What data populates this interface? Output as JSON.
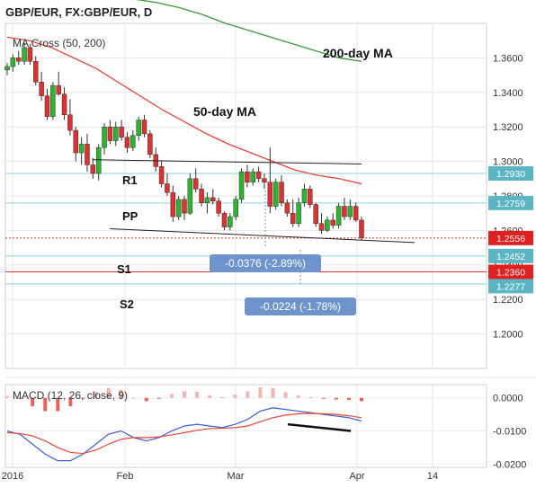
{
  "header": {
    "title": "GBP/EUR, FX:GBP/EUR, D"
  },
  "main_pane": {
    "indicator_label": "MA Cross (50, 200)",
    "ma200_label": "200-day MA",
    "ma50_label": "50-day MA",
    "levels": {
      "r1": "R1",
      "pp": "PP",
      "s1": "S1",
      "s2": "S2"
    },
    "measure_1": "-0.0376 (-2.89%)",
    "measure_2": "-0.0224 (-1.78%)"
  },
  "macd_pane": {
    "label": "MACD (12, 26, close, 9)"
  },
  "colors": {
    "bull": "#2db52d",
    "bear": "#e03030",
    "ma50": "#e8453c",
    "ma200": "#3a9a3a",
    "macd_line": "#3b5bdb",
    "signal_line": "#e8453c",
    "level_line": "#8fd3dc",
    "price_tag": "#e02020",
    "level_tag": "#5bb5c4",
    "measure_box": "#6f94cc"
  },
  "chart_data": [
    {
      "type": "candlestick",
      "title": "GBP/EUR, FX:GBP/EUR, D",
      "x_ticks": [
        "2016",
        "Feb",
        "Mar",
        "Apr",
        "14"
      ],
      "y_ticks": [
        "1.2000",
        "1.2200",
        "1.2400",
        "1.2600",
        "1.2800",
        "1.3000",
        "1.3200",
        "1.3400",
        "1.3600"
      ],
      "ylim": [
        1.18,
        1.38
      ],
      "grid": true,
      "price_tags": {
        "last": "1.2556",
        "r1": "1.2930",
        "pp": "1.2759",
        "s1": "1.2452",
        "s2": "1.2360",
        "low": "1.2277"
      },
      "candles": [
        [
          1.353,
          1.357,
          1.35,
          1.355
        ],
        [
          1.355,
          1.362,
          1.352,
          1.36
        ],
        [
          1.36,
          1.364,
          1.356,
          1.358
        ],
        [
          1.358,
          1.369,
          1.356,
          1.366
        ],
        [
          1.366,
          1.368,
          1.356,
          1.358
        ],
        [
          1.358,
          1.361,
          1.344,
          1.346
        ],
        [
          1.346,
          1.352,
          1.335,
          1.338
        ],
        [
          1.338,
          1.342,
          1.324,
          1.326
        ],
        [
          1.326,
          1.346,
          1.324,
          1.344
        ],
        [
          1.344,
          1.352,
          1.338,
          1.339
        ],
        [
          1.339,
          1.343,
          1.324,
          1.327
        ],
        [
          1.327,
          1.336,
          1.315,
          1.318
        ],
        [
          1.318,
          1.32,
          1.3,
          1.305
        ],
        [
          1.305,
          1.314,
          1.298,
          1.31
        ],
        [
          1.31,
          1.316,
          1.294,
          1.298
        ],
        [
          1.298,
          1.302,
          1.29,
          1.293
        ],
        [
          1.293,
          1.31,
          1.289,
          1.308
        ],
        [
          1.308,
          1.322,
          1.304,
          1.32
        ],
        [
          1.32,
          1.324,
          1.31,
          1.312
        ],
        [
          1.312,
          1.323,
          1.309,
          1.32
        ],
        [
          1.32,
          1.324,
          1.312,
          1.314
        ],
        [
          1.314,
          1.317,
          1.305,
          1.308
        ],
        [
          1.308,
          1.318,
          1.306,
          1.315
        ],
        [
          1.315,
          1.326,
          1.312,
          1.324
        ],
        [
          1.324,
          1.327,
          1.314,
          1.316
        ],
        [
          1.316,
          1.318,
          1.302,
          1.304
        ],
        [
          1.304,
          1.308,
          1.294,
          1.297
        ],
        [
          1.297,
          1.3,
          1.285,
          1.287
        ],
        [
          1.287,
          1.293,
          1.28,
          1.282
        ],
        [
          1.282,
          1.286,
          1.265,
          1.268
        ],
        [
          1.268,
          1.28,
          1.266,
          1.278
        ],
        [
          1.278,
          1.28,
          1.266,
          1.27
        ],
        [
          1.27,
          1.293,
          1.269,
          1.29
        ],
        [
          1.29,
          1.296,
          1.282,
          1.284
        ],
        [
          1.284,
          1.287,
          1.274,
          1.276
        ],
        [
          1.276,
          1.282,
          1.27,
          1.279
        ],
        [
          1.279,
          1.284,
          1.275,
          1.277
        ],
        [
          1.277,
          1.279,
          1.268,
          1.27
        ],
        [
          1.27,
          1.271,
          1.26,
          1.262
        ],
        [
          1.262,
          1.27,
          1.26,
          1.268
        ],
        [
          1.268,
          1.28,
          1.266,
          1.278
        ],
        [
          1.278,
          1.296,
          1.276,
          1.294
        ],
        [
          1.294,
          1.298,
          1.285,
          1.288
        ],
        [
          1.288,
          1.296,
          1.286,
          1.294
        ],
        [
          1.294,
          1.297,
          1.288,
          1.29
        ],
        [
          1.29,
          1.293,
          1.284,
          1.288
        ],
        [
          1.288,
          1.308,
          1.27,
          1.274
        ],
        [
          1.274,
          1.29,
          1.272,
          1.288
        ],
        [
          1.288,
          1.292,
          1.274,
          1.276
        ],
        [
          1.276,
          1.278,
          1.268,
          1.27
        ],
        [
          1.27,
          1.278,
          1.262,
          1.264
        ],
        [
          1.264,
          1.279,
          1.262,
          1.276
        ],
        [
          1.276,
          1.287,
          1.274,
          1.284
        ],
        [
          1.284,
          1.286,
          1.273,
          1.275
        ],
        [
          1.275,
          1.276,
          1.262,
          1.264
        ],
        [
          1.264,
          1.27,
          1.258,
          1.26
        ],
        [
          1.26,
          1.268,
          1.259,
          1.266
        ],
        [
          1.266,
          1.27,
          1.261,
          1.263
        ],
        [
          1.263,
          1.276,
          1.261,
          1.274
        ],
        [
          1.274,
          1.279,
          1.266,
          1.268
        ],
        [
          1.268,
          1.278,
          1.266,
          1.274
        ],
        [
          1.274,
          1.276,
          1.265,
          1.266
        ],
        [
          1.266,
          1.268,
          1.254,
          1.2556
        ]
      ],
      "ma50": [
        1.372,
        1.37,
        1.366,
        1.36,
        1.354,
        1.346,
        1.338,
        1.33,
        1.323,
        1.316,
        1.31,
        1.305,
        1.3,
        1.295,
        1.292,
        1.29,
        1.287
      ],
      "ma200": [
        1.394,
        1.392,
        1.389,
        1.385,
        1.38,
        1.376,
        1.372,
        1.368,
        1.364,
        1.36,
        1.358
      ],
      "trendlines": [
        {
          "x": [
            0.24,
            1.0
          ],
          "y": [
            1.301,
            1.2985
          ]
        },
        {
          "x": [
            0.29,
            1.15
          ],
          "y": [
            1.261,
            1.253
          ]
        }
      ]
    },
    {
      "type": "line",
      "title": "MACD (12, 26, close, 9)",
      "y_ticks": [
        "0.0000",
        "-0.0100",
        "-0.0200"
      ],
      "ylim": [
        -0.021,
        0.004
      ],
      "series": [
        {
          "values": [
            -0.01,
            -0.011,
            -0.014,
            -0.017,
            -0.019,
            -0.019,
            -0.017,
            -0.014,
            -0.011,
            -0.01,
            -0.012,
            -0.013,
            -0.012,
            -0.01,
            -0.0085,
            -0.008,
            -0.0085,
            -0.009,
            -0.008,
            -0.0065,
            -0.004,
            -0.003,
            -0.0035,
            -0.004,
            -0.0045,
            -0.005,
            -0.0055,
            -0.006,
            -0.007
          ]
        },
        {
          "values": [
            -0.0105,
            -0.0108,
            -0.0115,
            -0.013,
            -0.015,
            -0.0165,
            -0.0168,
            -0.0158,
            -0.014,
            -0.0125,
            -0.012,
            -0.012,
            -0.0118,
            -0.0112,
            -0.0105,
            -0.0098,
            -0.0093,
            -0.0092,
            -0.009,
            -0.0085,
            -0.0072,
            -0.006,
            -0.0052,
            -0.0048,
            -0.0047,
            -0.0048,
            -0.005,
            -0.0054,
            -0.006
          ]
        }
      ],
      "histogram": [
        0.0005,
        -0.0002,
        -0.0025,
        -0.004,
        -0.004,
        -0.0025,
        -0.0002,
        0.0018,
        0.003,
        0.0025,
        0.0,
        -0.001,
        -0.0002,
        0.0012,
        0.002,
        0.0018,
        0.0008,
        0.0002,
        0.001,
        0.002,
        0.0032,
        0.003,
        0.0017,
        0.0008,
        0.0002,
        -0.0002,
        -0.0005,
        -0.0006,
        -0.001
      ]
    }
  ]
}
